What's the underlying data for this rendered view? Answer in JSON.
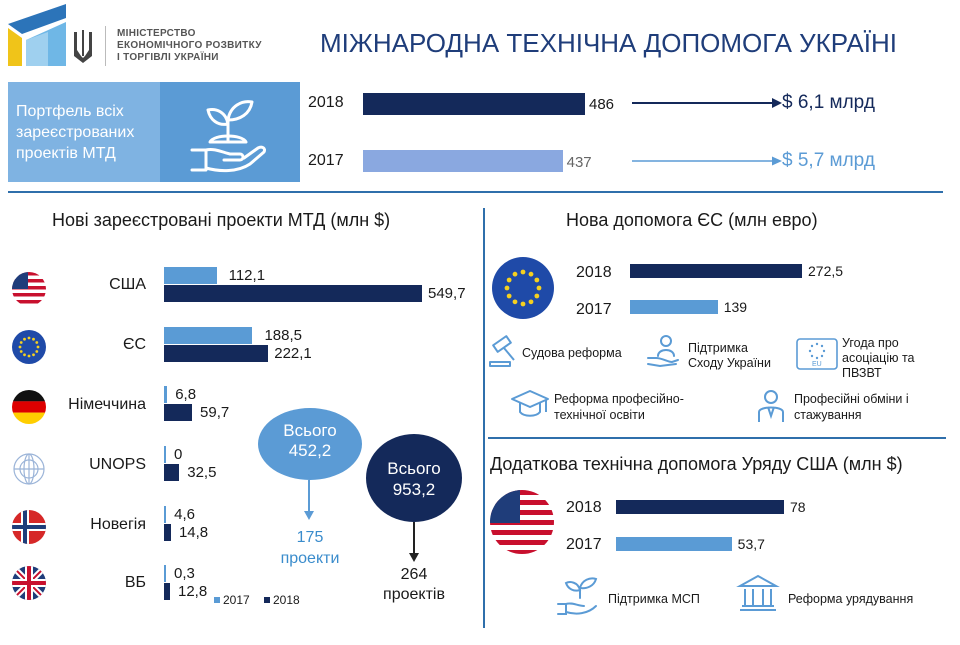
{
  "header": {
    "ministry_line1": "МІНІСТЕРСТВО",
    "ministry_line2": "ЕКОНОМІЧНОГО РОЗВИТКУ",
    "ministry_line3": "І ТОРГІВЛІ УКРАЇНИ",
    "title": "МІЖНАРОДНА ТЕХНІЧНА ДОПОМОГА УКРАЇНІ"
  },
  "portfolio": {
    "label_line1": "Портфель всіх",
    "label_line2": "зареєстрованих",
    "label_line3": "проектів МТД",
    "rows": [
      {
        "year": "2018",
        "value": 486,
        "value_label": "486",
        "amount": "$ 6,1 млрд"
      },
      {
        "year": "2017",
        "value": 437,
        "value_label": "437",
        "amount": "$ 5,7 млрд"
      }
    ]
  },
  "chart_data": [
    {
      "type": "bar",
      "title": "Нові зареєстровані проекти МТД (млн $)",
      "categories": [
        "США",
        "ЄС",
        "Німеччина",
        "UNOPS",
        "Новегія",
        "ВБ"
      ],
      "series": [
        {
          "name": "2017",
          "values": [
            112.1,
            188.5,
            6.8,
            0,
            4.6,
            0.3
          ],
          "labels": [
            "112,1",
            "188,5",
            "6,8",
            "0",
            "4,6",
            "0,3"
          ]
        },
        {
          "name": "2018",
          "values": [
            549.7,
            222.1,
            59.7,
            32.5,
            14.8,
            12.8
          ],
          "labels": [
            "549,7",
            "222,1",
            "59,7",
            "32,5",
            "14,8",
            "12,8"
          ]
        }
      ],
      "legend": [
        "2017",
        "2018"
      ]
    },
    {
      "type": "bar",
      "title": "Нова допомога ЄС (млн евро)",
      "categories": [
        "2018",
        "2017"
      ],
      "values": [
        272.5,
        139
      ],
      "labels": [
        "272,5",
        "139"
      ]
    },
    {
      "type": "bar",
      "title": "Додаткова технічна допомога Уряду США (млн $)",
      "categories": [
        "2018",
        "2017"
      ],
      "values": [
        78,
        53.7
      ],
      "labels": [
        "78",
        "53,7"
      ]
    }
  ],
  "totals": {
    "t2017_label": "Всього",
    "t2017_value": "452,2",
    "t2017_projects_num": "175",
    "t2017_projects_word": "проекти",
    "t2018_label": "Всього",
    "t2018_value": "953,2",
    "t2018_projects_num": "264",
    "t2018_projects_word": "проектів"
  },
  "eu_features": {
    "judicial": "Судова реформа",
    "east_line1": "Підтримка",
    "east_line2": "Сходу України",
    "assoc_line1": "Угода про",
    "assoc_line2": "асоціацію та",
    "assoc_line3": "ПВЗВТ",
    "eu_mark": "EU",
    "voc_line1": "Реформа професійно-",
    "voc_line2": "технічної освіти",
    "exch_line1": "Професійні обміни і",
    "exch_line2": "стажування"
  },
  "us_features": {
    "sme": "Підтримка МСП",
    "gov": "Реформа урядування"
  },
  "colors": {
    "dark": "#14295a",
    "light": "#5a9bd5",
    "accent": "#2f6fab"
  }
}
